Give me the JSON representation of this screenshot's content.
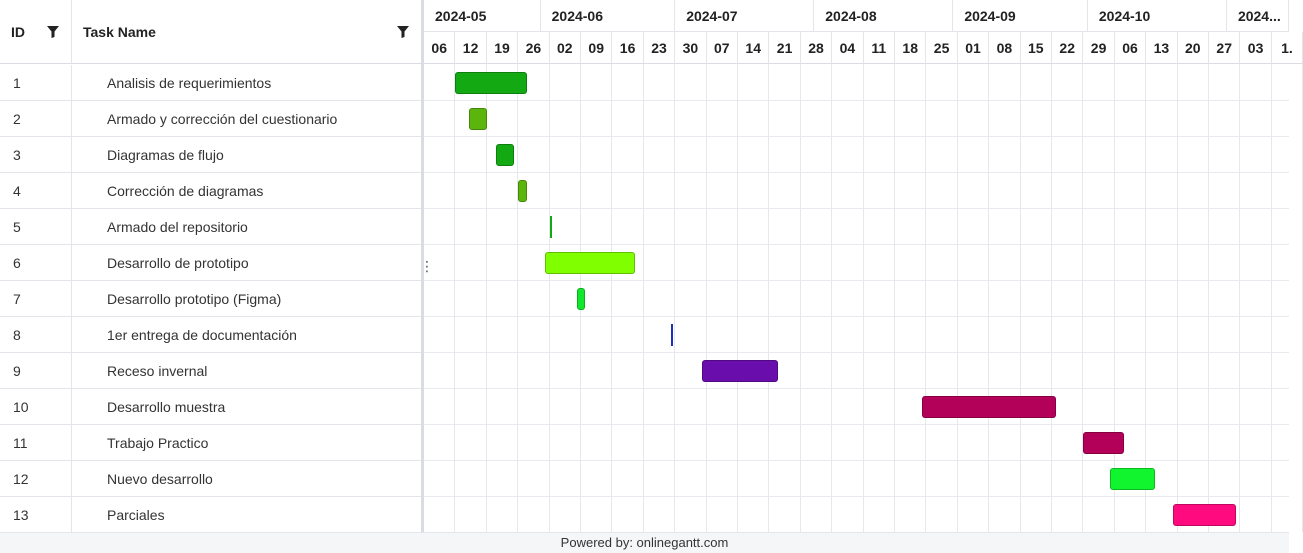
{
  "header": {
    "id_label": "ID",
    "name_label": "Task Name"
  },
  "tasks": [
    {
      "id": "1",
      "name": "Analisis de requerimientos",
      "start": "2024-05-13",
      "end": "2024-05-29",
      "color": "#13a913"
    },
    {
      "id": "2",
      "name": "Armado y corrección del cuestionario",
      "start": "2024-05-16",
      "end": "2024-05-20",
      "color": "#5bb50c"
    },
    {
      "id": "3",
      "name": "Diagramas de flujo",
      "start": "2024-05-22",
      "end": "2024-05-26",
      "color": "#13a913"
    },
    {
      "id": "4",
      "name": "Corrección de diagramas",
      "start": "2024-05-27",
      "end": "2024-05-29",
      "color": "#5bb50c"
    },
    {
      "id": "5",
      "name": "Armado del repositorio",
      "start": "2024-06-03",
      "end": "2024-06-03",
      "color": "#13a913"
    },
    {
      "id": "6",
      "name": "Desarrollo de prototipo",
      "start": "2024-06-02",
      "end": "2024-06-22",
      "color": "#7fff00"
    },
    {
      "id": "7",
      "name": "Desarrollo prototipo (Figma)",
      "start": "2024-06-09",
      "end": "2024-06-11",
      "color": "#11e82c"
    },
    {
      "id": "8",
      "name": "1er entrega de documentación",
      "start": "2024-06-30",
      "end": "2024-06-30",
      "color": "#1f2fb5"
    },
    {
      "id": "9",
      "name": "Receso invernal",
      "start": "2024-07-07",
      "end": "2024-07-24",
      "color": "#6a0dad"
    },
    {
      "id": "10",
      "name": "Desarrollo muestra",
      "start": "2024-08-25",
      "end": "2024-09-24",
      "color": "#b30059"
    },
    {
      "id": "11",
      "name": "Trabajo Practico",
      "start": "2024-09-30",
      "end": "2024-10-09",
      "color": "#b30059"
    },
    {
      "id": "12",
      "name": "Nuevo desarrollo",
      "start": "2024-10-06",
      "end": "2024-10-16",
      "color": "#11f52e"
    },
    {
      "id": "13",
      "name": "Parciales",
      "start": "2024-10-20",
      "end": "2024-11-03",
      "color": "#ff0a7f"
    }
  ],
  "timeline": {
    "start": "2024-05-06",
    "months": [
      "2024-05",
      "2024-06",
      "2024-07",
      "2024-08",
      "2024-09",
      "2024-10",
      "2024..."
    ],
    "weeks": [
      "06",
      "12",
      "19",
      "26",
      "02",
      "09",
      "16",
      "23",
      "30",
      "07",
      "14",
      "21",
      "28",
      "04",
      "11",
      "18",
      "25",
      "01",
      "08",
      "15",
      "22",
      "29",
      "06",
      "13",
      "20",
      "27",
      "03",
      "1."
    ]
  },
  "footer": {
    "text": "Powered by: onlinegantt.com"
  },
  "colors": {
    "grid": "#e3e5ea",
    "footer_bg": "#f5f6f8"
  }
}
